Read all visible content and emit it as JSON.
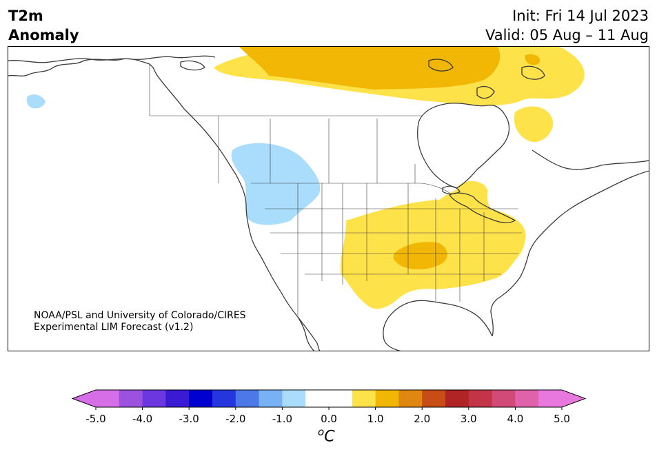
{
  "header": {
    "title_line1": "T2m",
    "title_line2": "Anomaly",
    "init_label": "Init: Fri 14 Jul 2023",
    "valid_label": "Valid: 05 Aug – 11 Aug"
  },
  "map": {
    "credit_line1": "NOAA/PSL and University of Colorado/CIRES",
    "credit_line2": "Experimental LIM Forecast (v1.2)",
    "anomaly_regions": [
      {
        "region": "Canadian Arctic Archipelago",
        "level": "1.0 to 2.0"
      },
      {
        "region": "Northern Canada (Nunavut)",
        "level": "0.5 to 1.0"
      },
      {
        "region": "Northern Quebec / Labrador",
        "level": "0.5 to 1.0"
      },
      {
        "region": "US Southern Plains / Midwest / Ohio Valley",
        "level": "0.5 to 1.0"
      },
      {
        "region": "Oklahoma / Arkansas core",
        "level": "1.0 to 1.5"
      },
      {
        "region": "Pacific Northwest / British Columbia",
        "level": "-1.0 to -0.5"
      },
      {
        "region": "Western Alaska",
        "level": "-1.0 to -0.5"
      }
    ]
  },
  "colorbar": {
    "units_base": "C",
    "units_sup": "o",
    "tick_labels": [
      "-5.0",
      "-4.0",
      "-3.0",
      "-2.0",
      "-1.0",
      "0.0",
      "1.0",
      "2.0",
      "3.0",
      "4.0",
      "5.0"
    ],
    "colors": [
      "#d66ee8",
      "#9c52de",
      "#6a38de",
      "#3a1ad2",
      "#0000d0",
      "#2536de",
      "#4c78e8",
      "#78b2f4",
      "#aadcfc",
      "#ffffff",
      "#ffffff",
      "#fee24a",
      "#f2b705",
      "#df8710",
      "#c84c16",
      "#b02426",
      "#c23446",
      "#d24a78",
      "#df62aa",
      "#e878de"
    ]
  }
}
